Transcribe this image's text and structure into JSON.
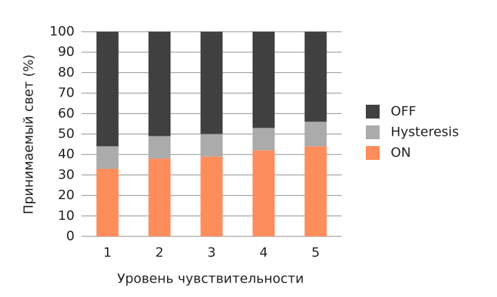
{
  "chart_data": {
    "type": "stacked_bar",
    "x_label": "Уровень чувствительности",
    "y_label": "Принимаемый свет (%)",
    "categories": [
      "1",
      "2",
      "3",
      "4",
      "5"
    ],
    "series": [
      {
        "name": "ON",
        "color": "#fd8d5b",
        "values": [
          33,
          38,
          39,
          42,
          44
        ]
      },
      {
        "name": "Hysteresis",
        "color": "#ababab",
        "values": [
          11,
          11,
          11,
          11,
          12
        ]
      },
      {
        "name": "OFF",
        "color": "#404040",
        "values": [
          56,
          51,
          50,
          47,
          44
        ]
      }
    ],
    "ylim": [
      0,
      100
    ],
    "yticks": [
      0,
      10,
      20,
      30,
      40,
      50,
      60,
      70,
      80,
      90,
      100
    ],
    "grid": true,
    "legend": "right"
  }
}
